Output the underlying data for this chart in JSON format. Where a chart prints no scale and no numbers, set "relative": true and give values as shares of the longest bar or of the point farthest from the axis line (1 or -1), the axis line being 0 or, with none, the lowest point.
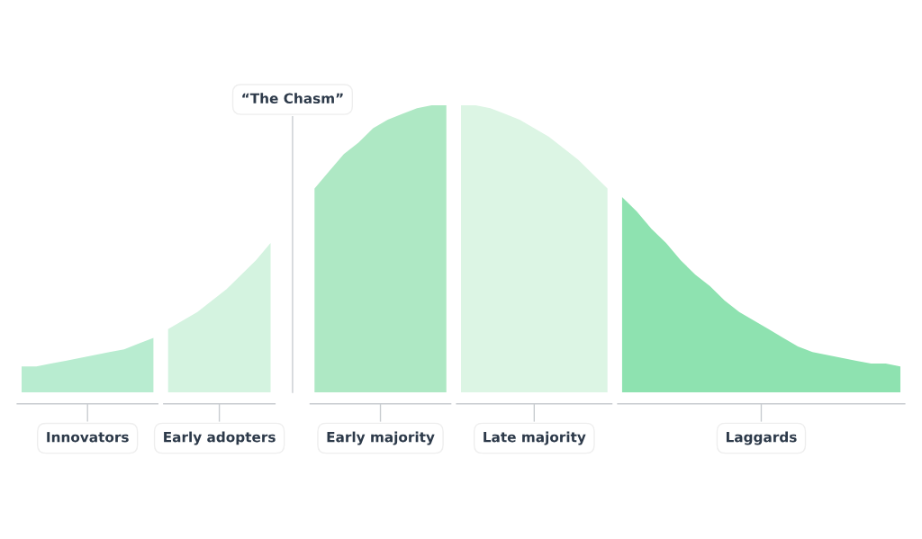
{
  "chart_data": {
    "type": "area",
    "relative": true,
    "legend": false,
    "categories": [
      null,
      null,
      null,
      null,
      null,
      null,
      null,
      null,
      null,
      null,
      null,
      null,
      null,
      null,
      null,
      null,
      null,
      null,
      null,
      null,
      null,
      null,
      null,
      null,
      null,
      null,
      null,
      null,
      null,
      null,
      null,
      null,
      null,
      null,
      null,
      null,
      null,
      null,
      null,
      null,
      null,
      null,
      null,
      null,
      null,
      null,
      null,
      null,
      null,
      null,
      null,
      null,
      null,
      null,
      null,
      null,
      null,
      null,
      null,
      null,
      null
    ],
    "series": [
      {
        "name": "Innovators",
        "color": "#b8ecd0",
        "values": [
          0.09,
          0.09,
          0.1,
          0.11,
          0.12,
          0.13,
          0.14,
          0.15,
          0.17,
          0.19,
          null,
          null,
          null,
          null,
          null,
          null,
          null,
          null,
          null,
          null,
          null,
          null,
          null,
          null,
          null,
          null,
          null,
          null,
          null,
          null,
          null,
          null,
          null,
          null,
          null,
          null,
          null,
          null,
          null,
          null,
          null,
          null,
          null,
          null,
          null,
          null,
          null,
          null,
          null,
          null,
          null,
          null,
          null,
          null,
          null,
          null,
          null,
          null,
          null,
          null,
          null
        ]
      },
      {
        "name": "Early adopters",
        "color": "#d4f3e0",
        "values": [
          null,
          null,
          null,
          null,
          null,
          null,
          null,
          null,
          null,
          null,
          0.22,
          0.25,
          0.28,
          0.32,
          0.36,
          0.41,
          0.46,
          0.52,
          null,
          null,
          null,
          null,
          null,
          null,
          null,
          null,
          null,
          null,
          null,
          null,
          null,
          null,
          null,
          null,
          null,
          null,
          null,
          null,
          null,
          null,
          null,
          null,
          null,
          null,
          null,
          null,
          null,
          null,
          null,
          null,
          null,
          null,
          null,
          null,
          null,
          null,
          null,
          null,
          null,
          null,
          null
        ]
      },
      {
        "name": "Early majority",
        "color": "#aee8c4",
        "values": [
          null,
          null,
          null,
          null,
          null,
          null,
          null,
          null,
          null,
          null,
          null,
          null,
          null,
          null,
          null,
          null,
          null,
          null,
          null,
          null,
          0.71,
          0.77,
          0.83,
          0.87,
          0.92,
          0.95,
          0.97,
          0.99,
          1.0,
          1.0,
          null,
          null,
          null,
          null,
          null,
          null,
          null,
          null,
          null,
          null,
          null,
          null,
          null,
          null,
          null,
          null,
          null,
          null,
          null,
          null,
          null,
          null,
          null,
          null,
          null,
          null,
          null,
          null,
          null,
          null,
          null
        ]
      },
      {
        "name": "Late majority",
        "color": "#dcf5e4",
        "values": [
          null,
          null,
          null,
          null,
          null,
          null,
          null,
          null,
          null,
          null,
          null,
          null,
          null,
          null,
          null,
          null,
          null,
          null,
          null,
          null,
          null,
          null,
          null,
          null,
          null,
          null,
          null,
          null,
          null,
          null,
          1.0,
          1.0,
          0.99,
          0.97,
          0.95,
          0.92,
          0.89,
          0.85,
          0.81,
          0.76,
          0.71,
          null,
          null,
          null,
          null,
          null,
          null,
          null,
          null,
          null,
          null,
          null,
          null,
          null,
          null,
          null,
          null,
          null,
          null,
          null,
          null
        ]
      },
      {
        "name": "Laggards",
        "color": "#8ee2b0",
        "values": [
          null,
          null,
          null,
          null,
          null,
          null,
          null,
          null,
          null,
          null,
          null,
          null,
          null,
          null,
          null,
          null,
          null,
          null,
          null,
          null,
          null,
          null,
          null,
          null,
          null,
          null,
          null,
          null,
          null,
          null,
          null,
          null,
          null,
          null,
          null,
          null,
          null,
          null,
          null,
          null,
          null,
          0.68,
          0.63,
          0.57,
          0.52,
          0.46,
          0.41,
          0.37,
          0.32,
          0.28,
          0.25,
          0.22,
          0.19,
          0.16,
          0.14,
          0.13,
          0.12,
          0.11,
          0.1,
          0.1,
          0.09
        ]
      }
    ],
    "annotations": [
      "“The Chasm”"
    ]
  }
}
